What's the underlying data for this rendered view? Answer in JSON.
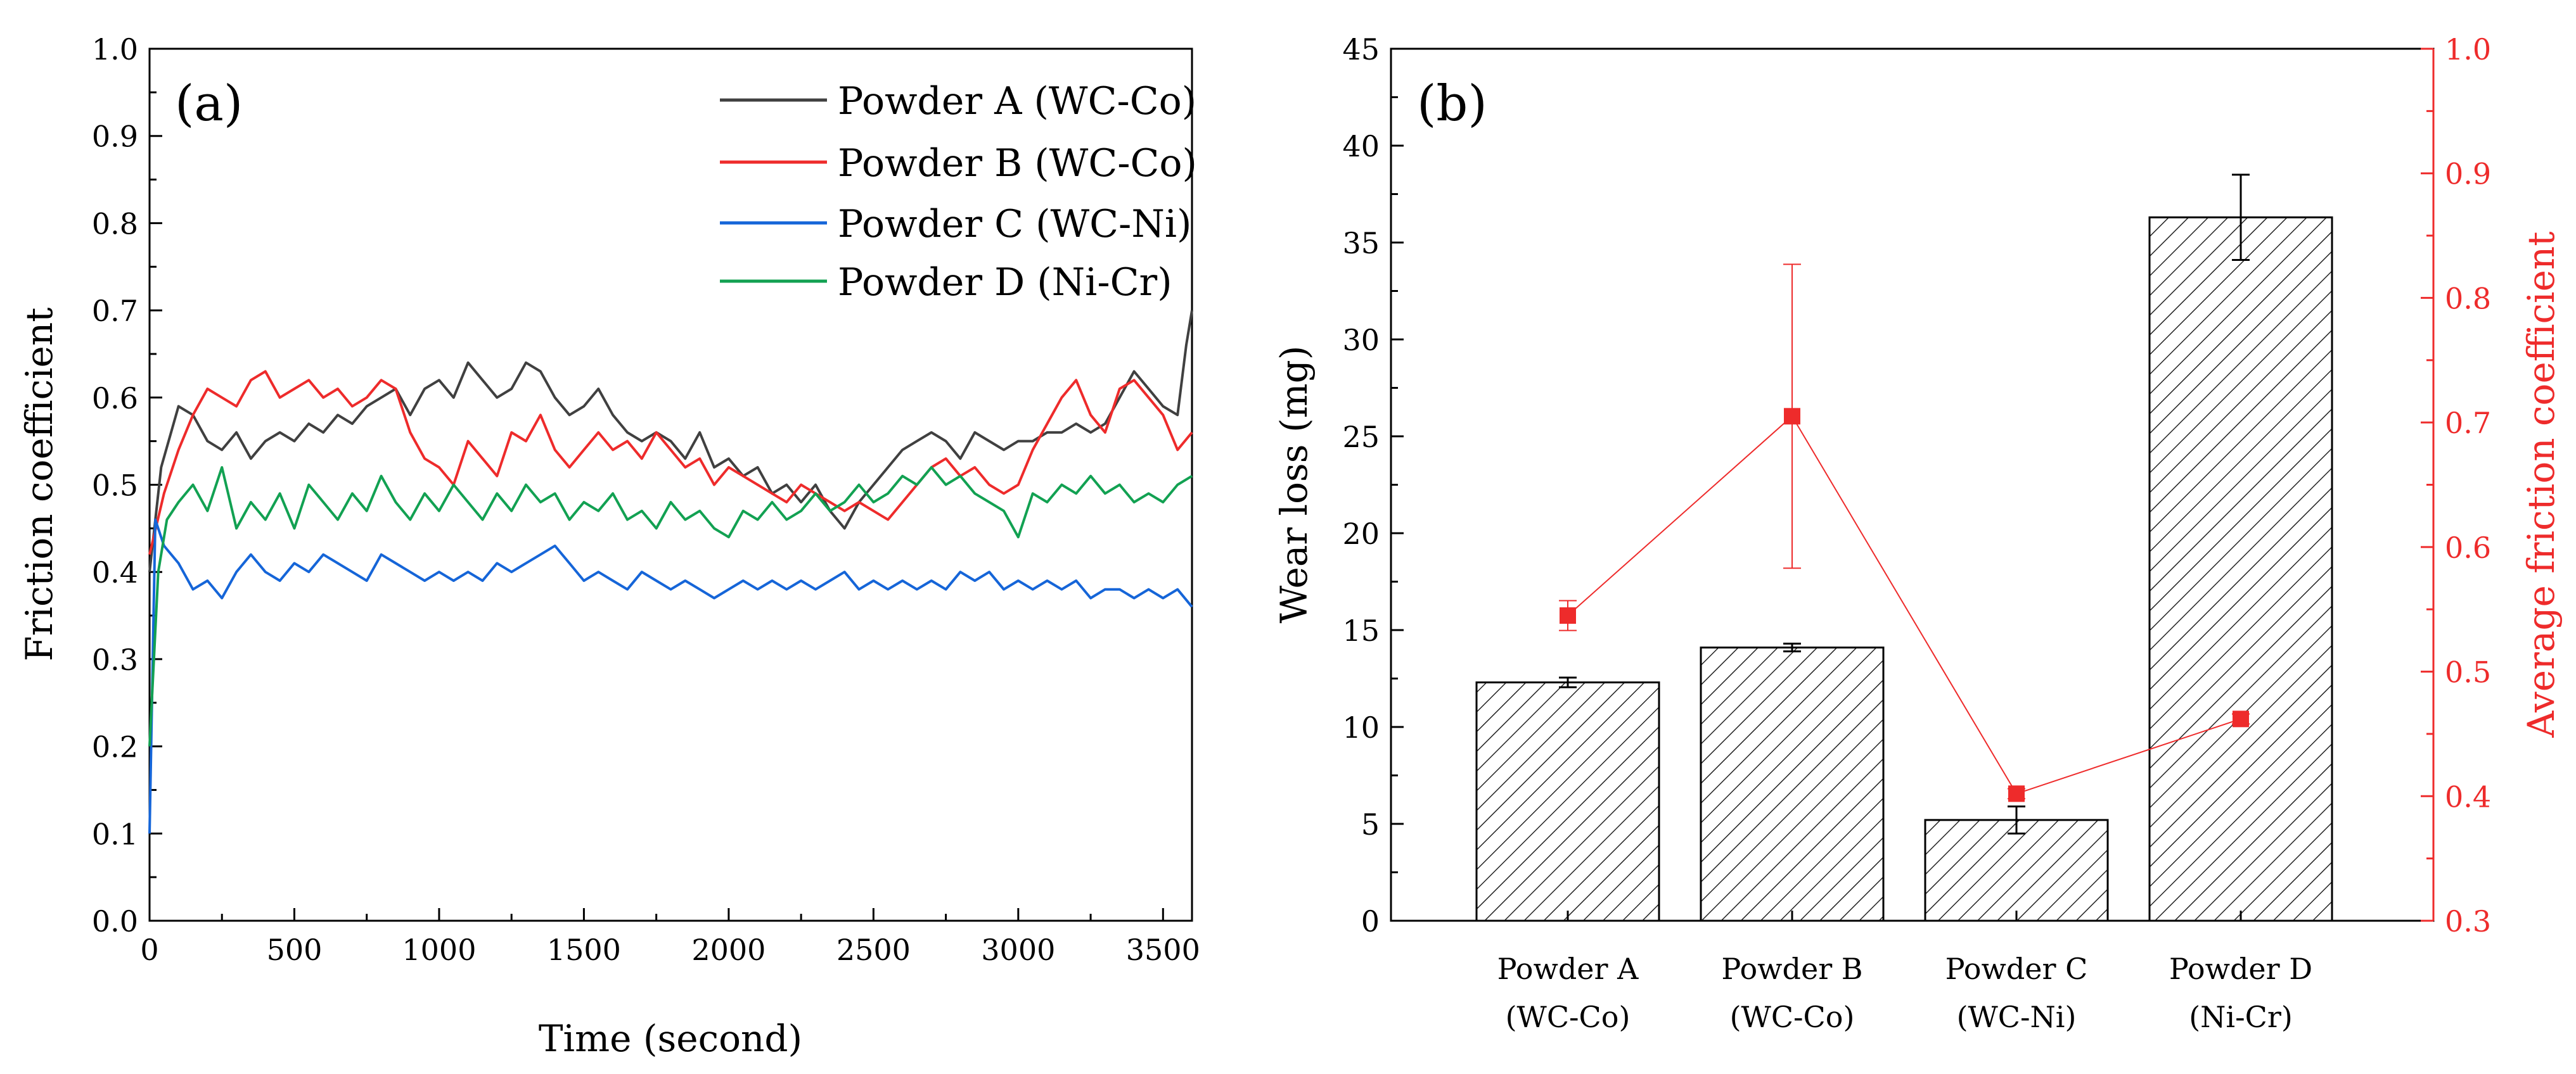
{
  "colors": {
    "powder_a": "#404040",
    "powder_b": "#ee2b2b",
    "powder_c": "#1565d8",
    "powder_d": "#12a152",
    "axis": "#000000",
    "friction_axis": "#ee2b2b",
    "bar_fill": "#ffffff"
  },
  "chart_data": [
    {
      "type": "line",
      "panel_label": "(a)",
      "xlabel": "Time (second)",
      "ylabel": "Friction coefficient",
      "xlim": [
        0,
        3600
      ],
      "ylim": [
        0.0,
        1.0
      ],
      "xticks": [
        "0",
        "500",
        "1000",
        "1500",
        "2000",
        "2500",
        "3000",
        "3500"
      ],
      "yticks": [
        "0.0",
        "0.1",
        "0.2",
        "0.3",
        "0.4",
        "0.5",
        "0.6",
        "0.7",
        "0.8",
        "0.9",
        "1.0"
      ],
      "legend_position": "top-right",
      "series": [
        {
          "name": "Powder A (WC-Co)",
          "color_key": "powder_a",
          "x": [
            0,
            40,
            100,
            150,
            200,
            250,
            300,
            350,
            400,
            450,
            500,
            550,
            600,
            650,
            700,
            750,
            800,
            850,
            900,
            950,
            1000,
            1050,
            1100,
            1150,
            1200,
            1250,
            1300,
            1350,
            1400,
            1450,
            1500,
            1550,
            1600,
            1650,
            1700,
            1750,
            1800,
            1850,
            1900,
            1950,
            2000,
            2050,
            2100,
            2150,
            2200,
            2250,
            2300,
            2350,
            2400,
            2450,
            2500,
            2550,
            2600,
            2650,
            2700,
            2750,
            2800,
            2850,
            2900,
            2950,
            3000,
            3050,
            3100,
            3150,
            3200,
            3250,
            3300,
            3350,
            3400,
            3450,
            3500,
            3550,
            3580,
            3600
          ],
          "y": [
            0.4,
            0.52,
            0.59,
            0.58,
            0.55,
            0.54,
            0.56,
            0.53,
            0.55,
            0.56,
            0.55,
            0.57,
            0.56,
            0.58,
            0.57,
            0.59,
            0.6,
            0.61,
            0.58,
            0.61,
            0.62,
            0.6,
            0.64,
            0.62,
            0.6,
            0.61,
            0.64,
            0.63,
            0.6,
            0.58,
            0.59,
            0.61,
            0.58,
            0.56,
            0.55,
            0.56,
            0.55,
            0.53,
            0.56,
            0.52,
            0.53,
            0.51,
            0.52,
            0.49,
            0.5,
            0.48,
            0.5,
            0.47,
            0.45,
            0.48,
            0.5,
            0.52,
            0.54,
            0.55,
            0.56,
            0.55,
            0.53,
            0.56,
            0.55,
            0.54,
            0.55,
            0.55,
            0.56,
            0.56,
            0.57,
            0.56,
            0.57,
            0.6,
            0.63,
            0.61,
            0.59,
            0.58,
            0.66,
            0.7
          ]
        },
        {
          "name": "Powder B (WC-Co)",
          "color_key": "powder_b",
          "x": [
            0,
            50,
            100,
            150,
            200,
            250,
            300,
            350,
            400,
            450,
            500,
            550,
            600,
            650,
            700,
            750,
            800,
            850,
            900,
            950,
            1000,
            1050,
            1100,
            1150,
            1200,
            1250,
            1300,
            1350,
            1400,
            1450,
            1500,
            1550,
            1600,
            1650,
            1700,
            1750,
            1800,
            1850,
            1900,
            1950,
            2000,
            2050,
            2100,
            2150,
            2200,
            2250,
            2300,
            2350,
            2400,
            2450,
            2500,
            2550,
            2600,
            2650,
            2700,
            2750,
            2800,
            2850,
            2900,
            2950,
            3000,
            3050,
            3100,
            3150,
            3200,
            3250,
            3300,
            3350,
            3400,
            3450,
            3500,
            3550,
            3600
          ],
          "y": [
            0.42,
            0.49,
            0.54,
            0.58,
            0.61,
            0.6,
            0.59,
            0.62,
            0.63,
            0.6,
            0.61,
            0.62,
            0.6,
            0.61,
            0.59,
            0.6,
            0.62,
            0.61,
            0.56,
            0.53,
            0.52,
            0.5,
            0.55,
            0.53,
            0.51,
            0.56,
            0.55,
            0.58,
            0.54,
            0.52,
            0.54,
            0.56,
            0.54,
            0.55,
            0.53,
            0.56,
            0.54,
            0.52,
            0.53,
            0.5,
            0.52,
            0.51,
            0.5,
            0.49,
            0.48,
            0.5,
            0.49,
            0.48,
            0.47,
            0.48,
            0.47,
            0.46,
            0.48,
            0.5,
            0.52,
            0.53,
            0.51,
            0.52,
            0.5,
            0.49,
            0.5,
            0.54,
            0.57,
            0.6,
            0.62,
            0.58,
            0.56,
            0.61,
            0.62,
            0.6,
            0.58,
            0.54,
            0.56
          ]
        },
        {
          "name": "Powder C (WC-Ni)",
          "color_key": "powder_c",
          "x": [
            0,
            20,
            50,
            100,
            150,
            200,
            250,
            300,
            350,
            400,
            450,
            500,
            550,
            600,
            650,
            700,
            750,
            800,
            850,
            900,
            950,
            1000,
            1050,
            1100,
            1150,
            1200,
            1250,
            1300,
            1350,
            1400,
            1450,
            1500,
            1550,
            1600,
            1650,
            1700,
            1750,
            1800,
            1850,
            1900,
            1950,
            2000,
            2050,
            2100,
            2150,
            2200,
            2250,
            2300,
            2350,
            2400,
            2450,
            2500,
            2550,
            2600,
            2650,
            2700,
            2750,
            2800,
            2850,
            2900,
            2950,
            3000,
            3050,
            3100,
            3150,
            3200,
            3250,
            3300,
            3350,
            3400,
            3450,
            3500,
            3550,
            3600
          ],
          "y": [
            0.1,
            0.46,
            0.43,
            0.41,
            0.38,
            0.39,
            0.37,
            0.4,
            0.42,
            0.4,
            0.39,
            0.41,
            0.4,
            0.42,
            0.41,
            0.4,
            0.39,
            0.42,
            0.41,
            0.4,
            0.39,
            0.4,
            0.39,
            0.4,
            0.39,
            0.41,
            0.4,
            0.41,
            0.42,
            0.43,
            0.41,
            0.39,
            0.4,
            0.39,
            0.38,
            0.4,
            0.39,
            0.38,
            0.39,
            0.38,
            0.37,
            0.38,
            0.39,
            0.38,
            0.39,
            0.38,
            0.39,
            0.38,
            0.39,
            0.4,
            0.38,
            0.39,
            0.38,
            0.39,
            0.38,
            0.39,
            0.38,
            0.4,
            0.39,
            0.4,
            0.38,
            0.39,
            0.38,
            0.39,
            0.38,
            0.39,
            0.37,
            0.38,
            0.38,
            0.37,
            0.38,
            0.37,
            0.38,
            0.36
          ]
        },
        {
          "name": "Powder D (Ni-Cr)",
          "color_key": "powder_d",
          "x": [
            0,
            30,
            60,
            100,
            150,
            200,
            250,
            300,
            350,
            400,
            450,
            500,
            550,
            600,
            650,
            700,
            750,
            800,
            850,
            900,
            950,
            1000,
            1050,
            1100,
            1150,
            1200,
            1250,
            1300,
            1350,
            1400,
            1450,
            1500,
            1550,
            1600,
            1650,
            1700,
            1750,
            1800,
            1850,
            1900,
            1950,
            2000,
            2050,
            2100,
            2150,
            2200,
            2250,
            2300,
            2350,
            2400,
            2450,
            2500,
            2550,
            2600,
            2650,
            2700,
            2750,
            2800,
            2850,
            2900,
            2950,
            3000,
            3050,
            3100,
            3150,
            3200,
            3250,
            3300,
            3350,
            3400,
            3450,
            3500,
            3550,
            3600
          ],
          "y": [
            0.2,
            0.4,
            0.46,
            0.48,
            0.5,
            0.47,
            0.52,
            0.45,
            0.48,
            0.46,
            0.49,
            0.45,
            0.5,
            0.48,
            0.46,
            0.49,
            0.47,
            0.51,
            0.48,
            0.46,
            0.49,
            0.47,
            0.5,
            0.48,
            0.46,
            0.49,
            0.47,
            0.5,
            0.48,
            0.49,
            0.46,
            0.48,
            0.47,
            0.49,
            0.46,
            0.47,
            0.45,
            0.48,
            0.46,
            0.47,
            0.45,
            0.44,
            0.47,
            0.46,
            0.48,
            0.46,
            0.47,
            0.49,
            0.47,
            0.48,
            0.5,
            0.48,
            0.49,
            0.51,
            0.5,
            0.52,
            0.5,
            0.51,
            0.49,
            0.48,
            0.47,
            0.44,
            0.49,
            0.48,
            0.5,
            0.49,
            0.51,
            0.49,
            0.5,
            0.48,
            0.49,
            0.48,
            0.5,
            0.51
          ]
        }
      ]
    },
    {
      "type": "bar",
      "panel_label": "(b)",
      "ylabel": "Wear loss (mg)",
      "y2label": "Average friction coefficient",
      "ylim": [
        0,
        45
      ],
      "y2lim": [
        0.3,
        1.0
      ],
      "yticks": [
        "0",
        "5",
        "10",
        "15",
        "20",
        "25",
        "30",
        "35",
        "40",
        "45"
      ],
      "y2ticks": [
        "0.3",
        "0.4",
        "0.5",
        "0.6",
        "0.7",
        "0.8",
        "0.9",
        "1.0"
      ],
      "categories": [
        {
          "line1": "Powder A",
          "line2": "(WC-Co)"
        },
        {
          "line1": "Powder B",
          "line2": "(WC-Co)"
        },
        {
          "line1": "Powder C",
          "line2": "(WC-Ni)"
        },
        {
          "line1": "Powder D",
          "line2": "(Ni-Cr)"
        }
      ],
      "wear_loss": [
        12.3,
        14.1,
        5.2,
        36.3
      ],
      "wear_loss_error": [
        0.25,
        0.2,
        0.7,
        2.2
      ],
      "friction_mean": [
        0.545,
        0.705,
        0.402,
        0.462
      ],
      "friction_error": [
        0.012,
        0.122,
        0.004,
        0.004
      ]
    }
  ]
}
